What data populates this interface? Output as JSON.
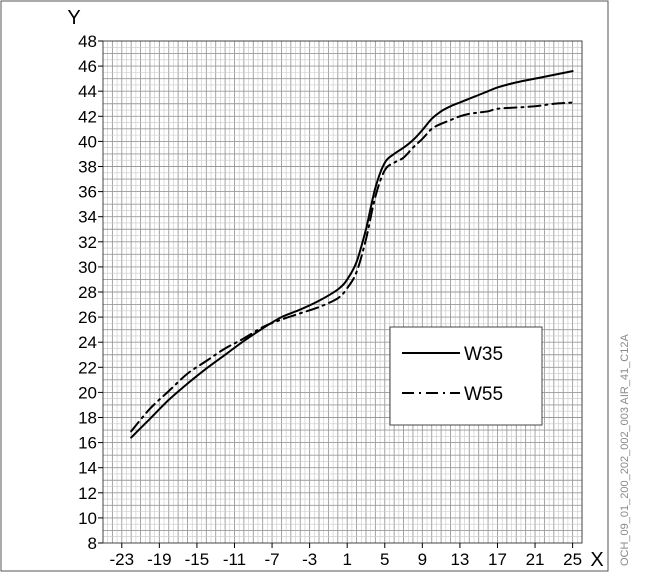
{
  "chart_data": {
    "type": "line",
    "x_axis_letter": "X",
    "y_axis_letter": "Y",
    "xlim": [
      -25,
      26
    ],
    "ylim": [
      8,
      48
    ],
    "x_ticks": [
      -23,
      -19,
      -15,
      -11,
      -7,
      -3,
      1,
      5,
      9,
      13,
      17,
      21,
      25
    ],
    "y_ticks": [
      8,
      10,
      12,
      14,
      16,
      18,
      20,
      22,
      24,
      26,
      28,
      30,
      32,
      34,
      36,
      38,
      40,
      42,
      44,
      46,
      48
    ],
    "grid": true,
    "legend_position": "lower-right",
    "series": [
      {
        "name": "W35",
        "style": "solid",
        "color": "#000000",
        "x": [
          -22,
          -20,
          -18,
          -16,
          -14,
          -12,
          -10,
          -8,
          -6,
          -4,
          -2,
          0,
          1,
          2,
          3,
          4,
          5,
          6,
          7,
          8,
          9,
          10,
          11,
          12,
          13,
          14,
          15,
          16,
          17,
          19,
          21,
          23,
          25
        ],
        "y": [
          16.4,
          17.9,
          19.4,
          20.7,
          21.9,
          23.0,
          24.1,
          25.1,
          26.0,
          26.6,
          27.3,
          28.2,
          29.0,
          30.4,
          33.0,
          36.3,
          38.3,
          39.0,
          39.5,
          40.1,
          40.9,
          41.8,
          42.4,
          42.8,
          43.1,
          43.4,
          43.7,
          44.0,
          44.3,
          44.7,
          45.0,
          45.3,
          45.6
        ]
      },
      {
        "name": "W55",
        "style": "dash-dot",
        "color": "#000000",
        "x": [
          -22,
          -20,
          -18,
          -16,
          -14,
          -12,
          -10,
          -8,
          -6,
          -4,
          -2,
          0,
          1,
          2,
          3,
          4,
          5,
          6,
          7,
          8,
          9,
          10,
          11,
          12,
          13,
          14,
          15,
          16,
          17,
          19,
          21,
          23,
          25
        ],
        "y": [
          16.9,
          18.7,
          20.1,
          21.5,
          22.5,
          23.5,
          24.3,
          25.2,
          25.8,
          26.3,
          26.8,
          27.5,
          28.3,
          29.6,
          32.2,
          35.6,
          37.7,
          38.3,
          38.7,
          39.5,
          40.2,
          41.0,
          41.4,
          41.7,
          42.0,
          42.2,
          42.3,
          42.4,
          42.6,
          42.7,
          42.8,
          43.0,
          43.1
        ]
      }
    ]
  },
  "side_code": "OCH_09_01_200_202_002_003 AIR_41_C12A"
}
